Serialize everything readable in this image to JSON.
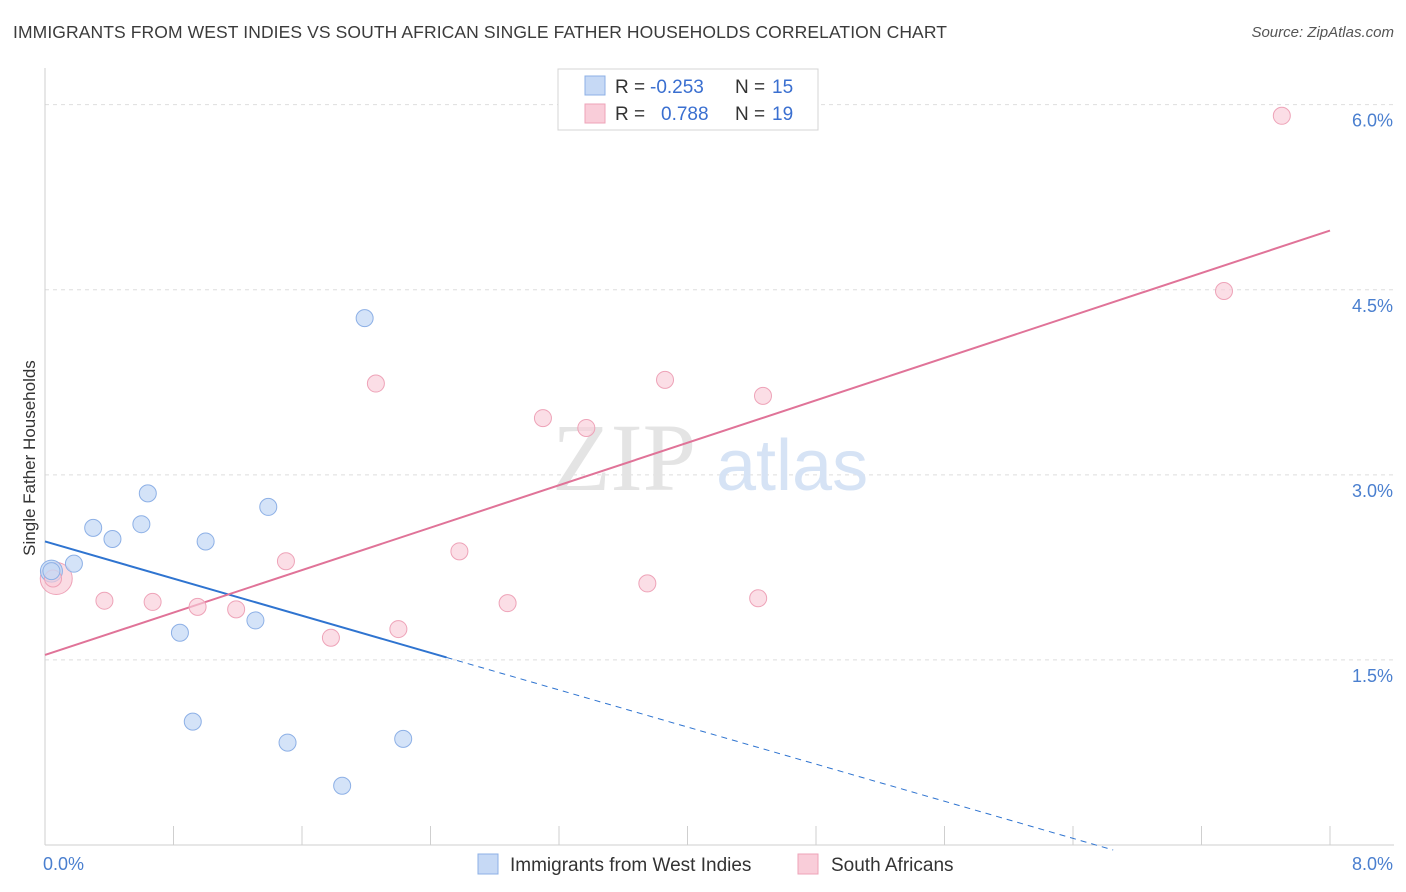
{
  "title": "IMMIGRANTS FROM WEST INDIES VS SOUTH AFRICAN SINGLE FATHER HOUSEHOLDS CORRELATION CHART",
  "source": "Source: ZipAtlas.com",
  "watermark": {
    "zip": "ZIP",
    "atlas": "atlas"
  },
  "colors": {
    "blue_fill": "#c6d9f5",
    "blue_stroke": "#8db0e6",
    "blue_line": "#2f74d0",
    "pink_fill": "#f9cdd9",
    "pink_stroke": "#eea3b8",
    "pink_line": "#e07398",
    "tick_text": "#4a7fcf"
  },
  "legend": {
    "rows": [
      {
        "r_label": "R =",
        "r_value": "-0.253",
        "n_label": "N =",
        "n_value": "15",
        "series": "blue"
      },
      {
        "r_label": "R =",
        "r_value": "0.788",
        "n_label": "N =",
        "n_value": "19",
        "series": "pink"
      }
    ]
  },
  "chart_data": {
    "type": "scatter",
    "title": "IMMIGRANTS FROM WEST INDIES VS SOUTH AFRICAN SINGLE FATHER HOUSEHOLDS CORRELATION CHART",
    "xlabel": "",
    "ylabel": "Single Father Households",
    "xlim": [
      0,
      8
    ],
    "ylim": [
      0,
      6.2
    ],
    "x_tick_labels": [
      "0.0%",
      "8.0%"
    ],
    "y_ticks": [
      1.5,
      3.0,
      4.5,
      6.0
    ],
    "y_tick_labels": [
      "1.5%",
      "3.0%",
      "4.5%",
      "6.0%"
    ],
    "grid": "horizontal dashed",
    "legend_position": "top-center",
    "series": [
      {
        "name": "Immigrants from West Indies",
        "color": "blue",
        "points": [
          [
            0.04,
            2.22
          ],
          [
            0.18,
            2.28
          ],
          [
            0.3,
            2.57
          ],
          [
            0.42,
            2.48
          ],
          [
            0.6,
            2.6
          ],
          [
            0.64,
            2.85
          ],
          [
            0.84,
            1.72
          ],
          [
            0.92,
            1.0
          ],
          [
            1.0,
            2.46
          ],
          [
            1.31,
            1.82
          ],
          [
            1.39,
            2.74
          ],
          [
            1.51,
            0.83
          ],
          [
            1.85,
            0.48
          ],
          [
            1.99,
            4.27
          ],
          [
            2.23,
            0.86
          ]
        ],
        "trend": {
          "x0": 0.0,
          "y0": 2.46,
          "x1": 2.5,
          "y1": 1.52,
          "dashed_to_x": 6.65
        }
      },
      {
        "name": "South Africans",
        "color": "pink",
        "points": [
          [
            0.05,
            2.16
          ],
          [
            0.37,
            1.98
          ],
          [
            0.67,
            1.97
          ],
          [
            0.95,
            1.93
          ],
          [
            1.19,
            1.91
          ],
          [
            1.5,
            2.3
          ],
          [
            1.78,
            1.68
          ],
          [
            2.06,
            3.74
          ],
          [
            2.2,
            1.75
          ],
          [
            2.58,
            2.38
          ],
          [
            2.88,
            1.96
          ],
          [
            3.1,
            3.46
          ],
          [
            3.37,
            3.38
          ],
          [
            3.75,
            2.12
          ],
          [
            3.86,
            3.77
          ],
          [
            4.44,
            2.0
          ],
          [
            4.47,
            3.64
          ],
          [
            7.34,
            4.49
          ],
          [
            7.7,
            5.91
          ]
        ],
        "trend": {
          "x0": 0.0,
          "y0": 1.54,
          "x1": 8.0,
          "y1": 4.98
        }
      }
    ]
  },
  "bottom_legend": [
    {
      "label": "Immigrants from West Indies",
      "series": "blue"
    },
    {
      "label": "South Africans",
      "series": "pink"
    }
  ]
}
